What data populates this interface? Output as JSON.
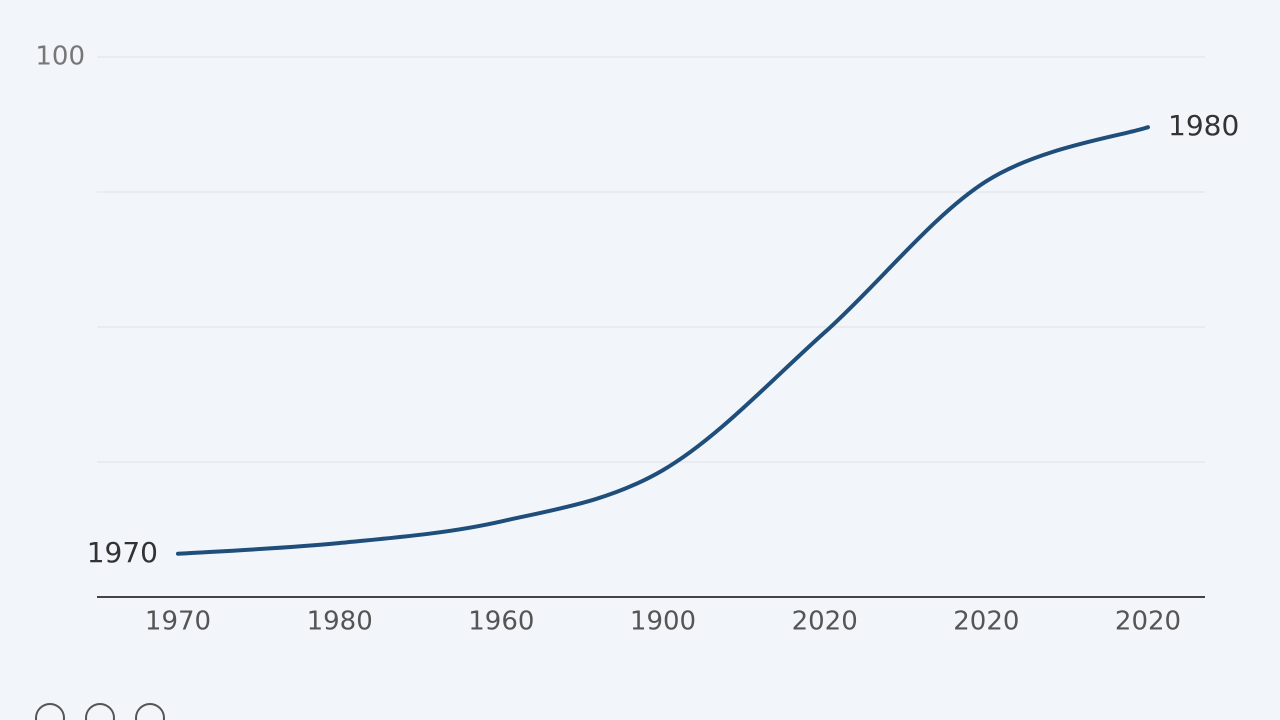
{
  "chart_data": {
    "type": "line",
    "categories": [
      "1970",
      "1980",
      "1960",
      "1900",
      "2020",
      "2020",
      "2020"
    ],
    "series": [
      {
        "color": "#1f4e7a",
        "values": [
          8,
          10,
          14,
          23.5,
          49,
          77,
          87
        ]
      }
    ],
    "ylim": [
      0,
      100
    ],
    "yticks": [
      100
    ],
    "gridlines": [
      25,
      50,
      75
    ],
    "annotations": [
      {
        "text": "1970",
        "point": 0
      },
      {
        "text": "1980",
        "point": 6
      }
    ]
  }
}
